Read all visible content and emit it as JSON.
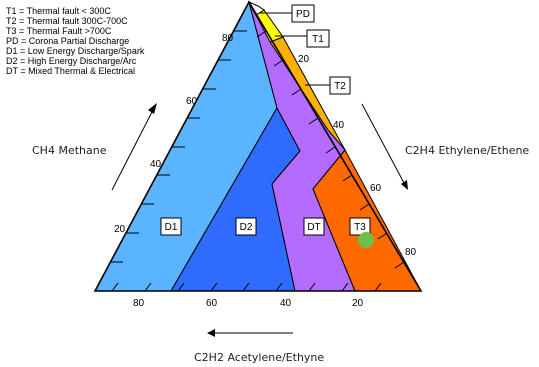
{
  "legend": [
    "T1 = Thermal fault < 300C",
    "T2 = Thermal fault 300C-700C",
    "T3 = Thermal Fault >700C",
    "PD = Corona Partial Discharge",
    "D1 = Low Energy Discharge/Spark",
    "D2 = High Energy Discharge/Arc",
    "DT = Mixed Thermal & Electrical"
  ],
  "axes": {
    "left": {
      "title": "CH4 Methane",
      "ticks": [
        "80",
        "60",
        "40",
        "20"
      ]
    },
    "right": {
      "title": "C2H4 Ethylene/Ethene",
      "ticks": [
        "20",
        "40",
        "60",
        "80"
      ]
    },
    "bottom": {
      "title": "C2H2 Acetylene/Ethyne",
      "ticks": [
        "80",
        "60",
        "40",
        "20"
      ]
    }
  },
  "zones": [
    {
      "code": "PD",
      "color": "#ffffff"
    },
    {
      "code": "T1",
      "color": "#ffff00"
    },
    {
      "code": "T2",
      "color": "#ffb000"
    },
    {
      "code": "T3",
      "color": "#ff6a00"
    },
    {
      "code": "DT",
      "color": "#b46cff"
    },
    {
      "code": "D2",
      "color": "#2f6bff"
    },
    {
      "code": "D1",
      "color": "#5ab4ff"
    }
  ],
  "marker": {
    "color": "#6cc04a"
  }
}
